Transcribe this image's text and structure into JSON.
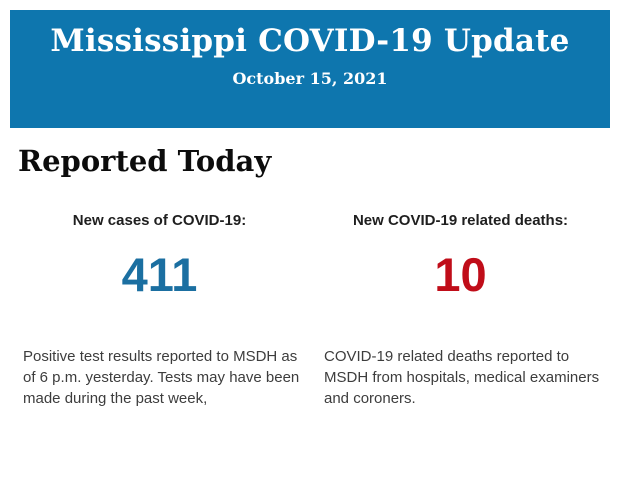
{
  "banner": {
    "title": "Mississippi COVID-19 Update",
    "date": "October 15, 2021",
    "background_color": "#0e76ae",
    "text_color": "#ffffff"
  },
  "section": {
    "heading": "Reported Today"
  },
  "stats": {
    "cases": {
      "label": "New cases of COVID-19:",
      "value": "411",
      "value_color": "#1b6fa1",
      "description": "Positive test results reported to MSDH as\nof 6 p.m. yesterday. Tests may have been\nmade during the past week,"
    },
    "deaths": {
      "label": "New COVID-19 related deaths:",
      "value": "10",
      "value_color": "#c00d19",
      "description": "COVID-19 related deaths reported to\nMSDH from hospitals, medical examiners\nand coroners."
    }
  }
}
